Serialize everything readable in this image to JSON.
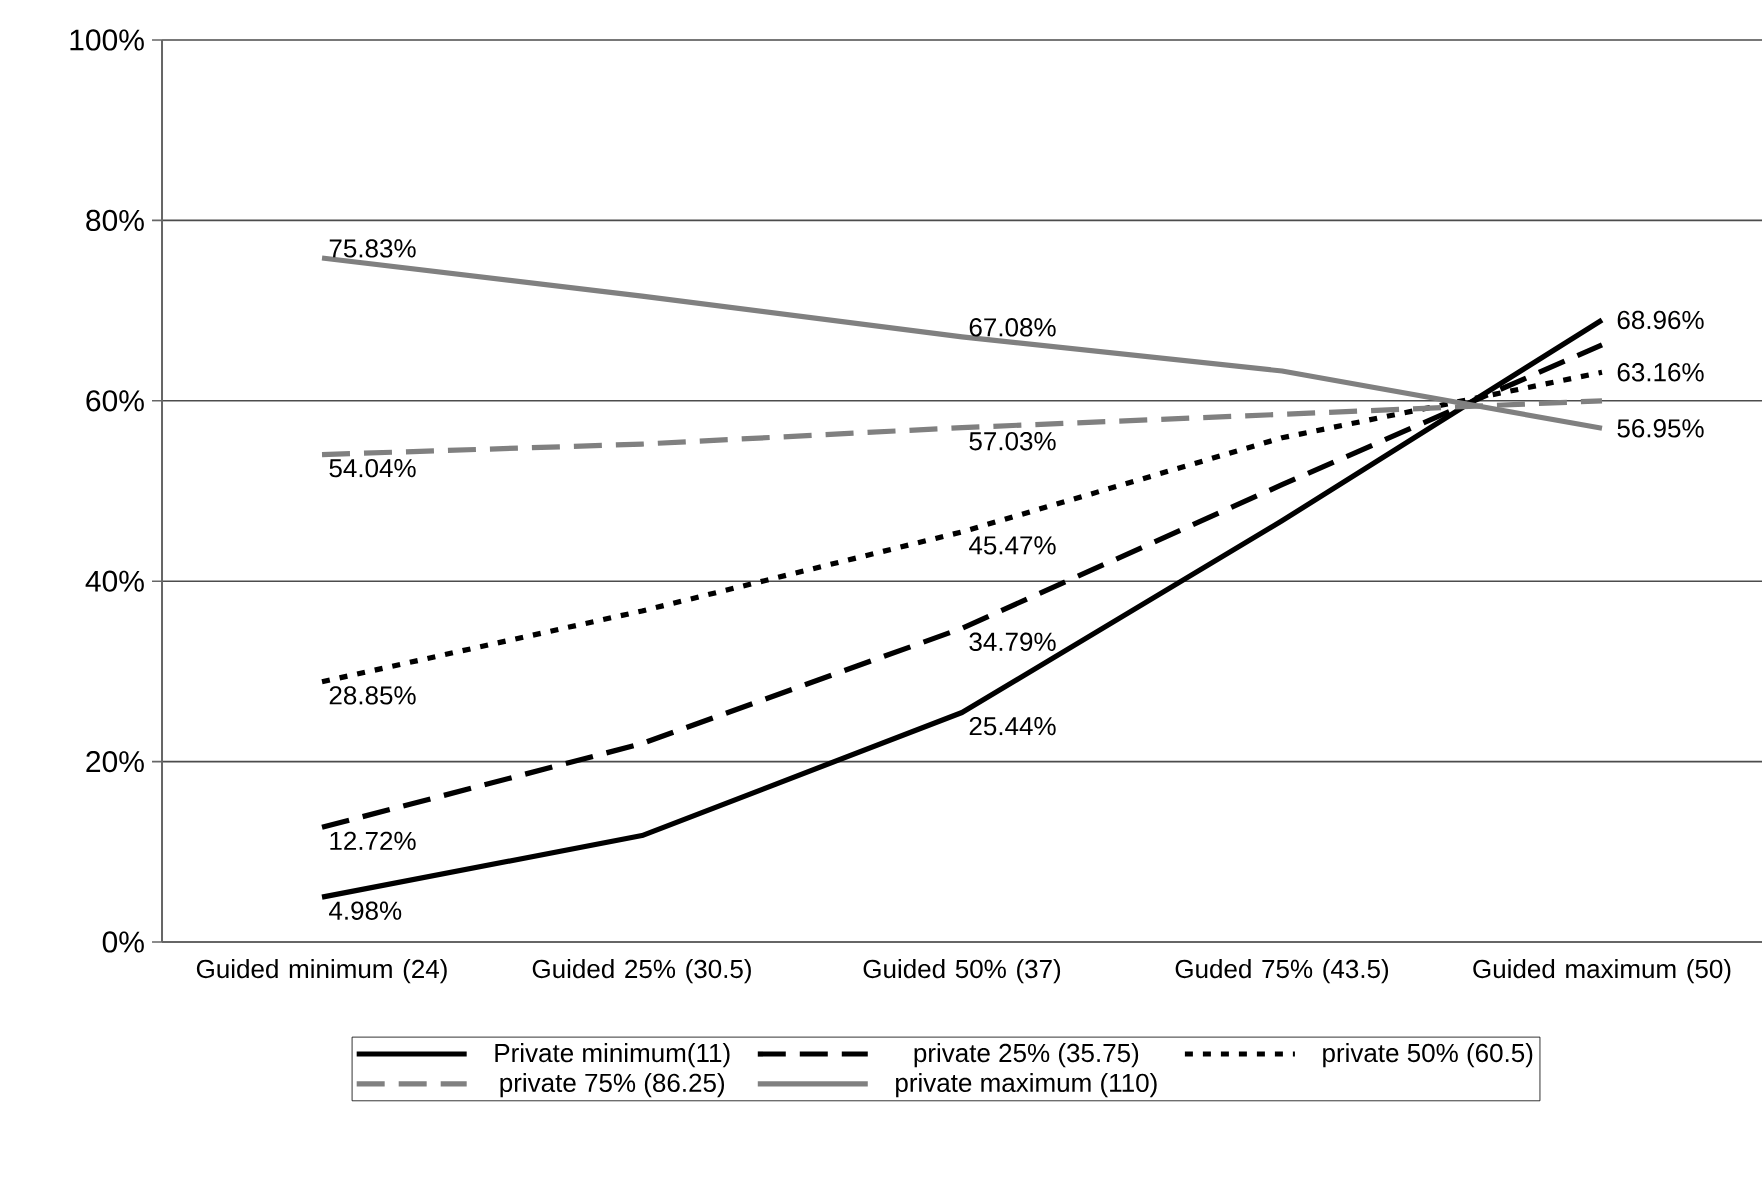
{
  "chart_data": {
    "type": "line",
    "categories": [
      "Guided minimum (24)",
      "Guided 25% (30.5)",
      "Guided 50% (37)",
      "Guded 75% (43.5)",
      "Guided maximum (50)"
    ],
    "series": [
      {
        "name": "Private minimum(11)",
        "color": "#000000",
        "line_style": "solid",
        "values": [
          4.98,
          11.8,
          25.44,
          46.7,
          68.96
        ],
        "value_labels": [
          "4.98%",
          null,
          "25.44%",
          null,
          "68.96%"
        ]
      },
      {
        "name": "private 25% (35.75)",
        "color": "#000000",
        "line_style": "dashed",
        "values": [
          12.72,
          22.0,
          34.79,
          50.7,
          66.2
        ],
        "value_labels": [
          "12.72%",
          null,
          "34.79%",
          null,
          null
        ]
      },
      {
        "name": "private 50% (60.5)",
        "color": "#000000",
        "line_style": "dotted",
        "values": [
          28.85,
          36.7,
          45.47,
          55.9,
          63.16
        ],
        "value_labels": [
          "28.85%",
          null,
          "45.47%",
          null,
          "63.16%"
        ]
      },
      {
        "name": "private 75% (86.25)",
        "color": "#808080",
        "line_style": "dashed",
        "values": [
          54.04,
          55.2,
          57.03,
          58.5,
          60.0
        ],
        "value_labels": [
          "54.04%",
          null,
          "57.03%",
          null,
          null
        ]
      },
      {
        "name": "private maximum (110)",
        "color": "#808080",
        "line_style": "solid",
        "values": [
          75.83,
          71.6,
          67.08,
          63.3,
          56.95
        ],
        "value_labels": [
          "75.83%",
          null,
          "67.08%",
          null,
          "56.95%"
        ]
      }
    ],
    "ylim": [
      0,
      100
    ],
    "yticks": [
      {
        "value": 0,
        "label": "0%"
      },
      {
        "value": 20,
        "label": "20%"
      },
      {
        "value": 40,
        "label": "40%"
      },
      {
        "value": 60,
        "label": "60%"
      },
      {
        "value": 80,
        "label": "80%"
      },
      {
        "value": 100,
        "label": "100%"
      }
    ],
    "grid": "y",
    "legend": "bottom"
  }
}
